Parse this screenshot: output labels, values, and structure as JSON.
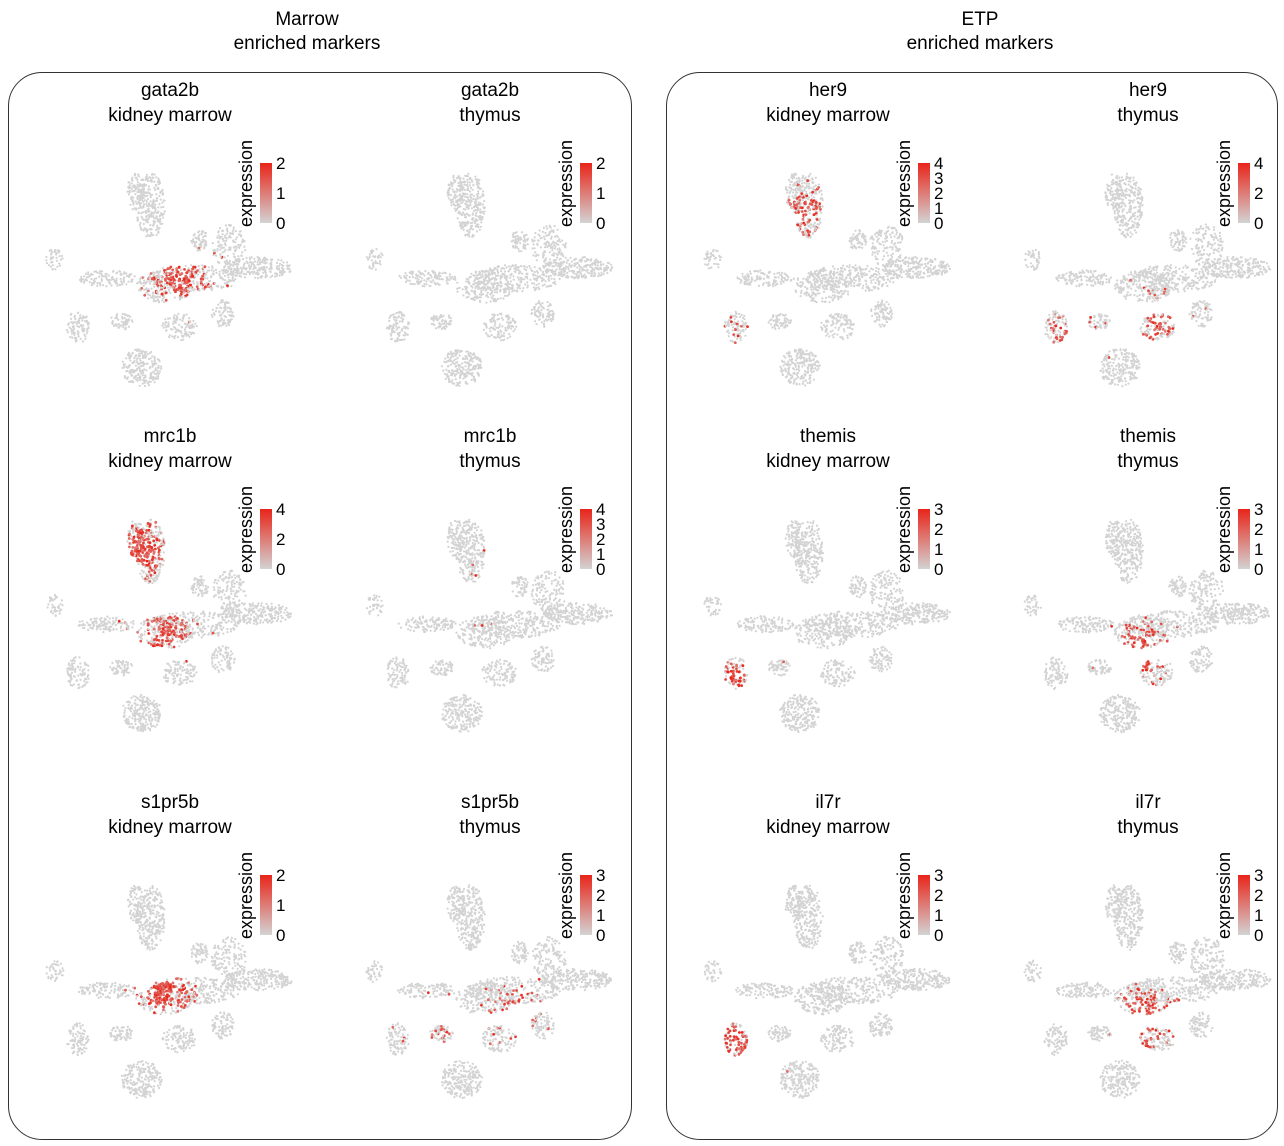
{
  "groups": [
    {
      "title_line1": "Marrow",
      "title_line2": "enriched markers"
    },
    {
      "title_line1": "ETP",
      "title_line2": "enriched markers"
    }
  ],
  "legend_title": "expression",
  "colors": {
    "low": "#d3d3d3",
    "high": "#e8251a",
    "border": "#333333"
  },
  "chart_data": [
    {
      "type": "scatter",
      "gene": "gata2b",
      "tissue": "kidney marrow",
      "color_scale": [
        0,
        1,
        2
      ],
      "hotspots": [
        [
          0.55,
          0.52,
          0.9
        ]
      ]
    },
    {
      "type": "scatter",
      "gene": "gata2b",
      "tissue": "thymus",
      "color_scale": [
        0,
        1,
        2
      ],
      "hotspots": [
        [
          0.06,
          0.3,
          0.5
        ]
      ]
    },
    {
      "type": "scatter",
      "gene": "mrc1b",
      "tissue": "kidney marrow",
      "color_scale": [
        0,
        2,
        4
      ],
      "hotspots": [
        [
          0.42,
          0.25,
          1.0
        ],
        [
          0.5,
          0.55,
          0.6
        ]
      ]
    },
    {
      "type": "scatter",
      "gene": "mrc1b",
      "tissue": "thymus",
      "color_scale": [
        0,
        1,
        2,
        3,
        4
      ],
      "hotspots": [
        [
          0.45,
          0.4,
          0.2
        ]
      ]
    },
    {
      "type": "scatter",
      "gene": "s1pr5b",
      "tissue": "kidney marrow",
      "color_scale": [
        0,
        1,
        2
      ],
      "hotspots": [
        [
          0.5,
          0.52,
          0.9
        ]
      ]
    },
    {
      "type": "scatter",
      "gene": "s1pr5b",
      "tissue": "thymus",
      "color_scale": [
        0,
        1,
        2,
        3
      ],
      "hotspots": [
        [
          0.3,
          0.65,
          0.5
        ],
        [
          0.6,
          0.6,
          0.4
        ]
      ]
    },
    {
      "type": "scatter",
      "gene": "her9",
      "tissue": "kidney marrow",
      "color_scale": [
        0,
        1,
        2,
        3,
        4
      ],
      "hotspots": [
        [
          0.45,
          0.28,
          0.6
        ],
        [
          0.2,
          0.78,
          0.5
        ]
      ]
    },
    {
      "type": "scatter",
      "gene": "her9",
      "tissue": "thymus",
      "color_scale": [
        0,
        2,
        4
      ],
      "hotspots": [
        [
          0.55,
          0.68,
          0.6
        ],
        [
          0.25,
          0.76,
          0.9
        ]
      ]
    },
    {
      "type": "scatter",
      "gene": "themis",
      "tissue": "kidney marrow",
      "color_scale": [
        0,
        1,
        2,
        3
      ],
      "hotspots": [
        [
          0.2,
          0.72,
          0.7
        ]
      ]
    },
    {
      "type": "scatter",
      "gene": "themis",
      "tissue": "thymus",
      "color_scale": [
        0,
        1,
        2,
        3
      ],
      "hotspots": [
        [
          0.5,
          0.62,
          0.9
        ]
      ]
    },
    {
      "type": "scatter",
      "gene": "il7r",
      "tissue": "kidney marrow",
      "color_scale": [
        0,
        1,
        2,
        3
      ],
      "hotspots": [
        [
          0.2,
          0.72,
          0.7
        ]
      ]
    },
    {
      "type": "scatter",
      "gene": "il7r",
      "tissue": "thymus",
      "color_scale": [
        0,
        1,
        2,
        3
      ],
      "hotspots": [
        [
          0.5,
          0.62,
          0.8
        ]
      ]
    }
  ]
}
